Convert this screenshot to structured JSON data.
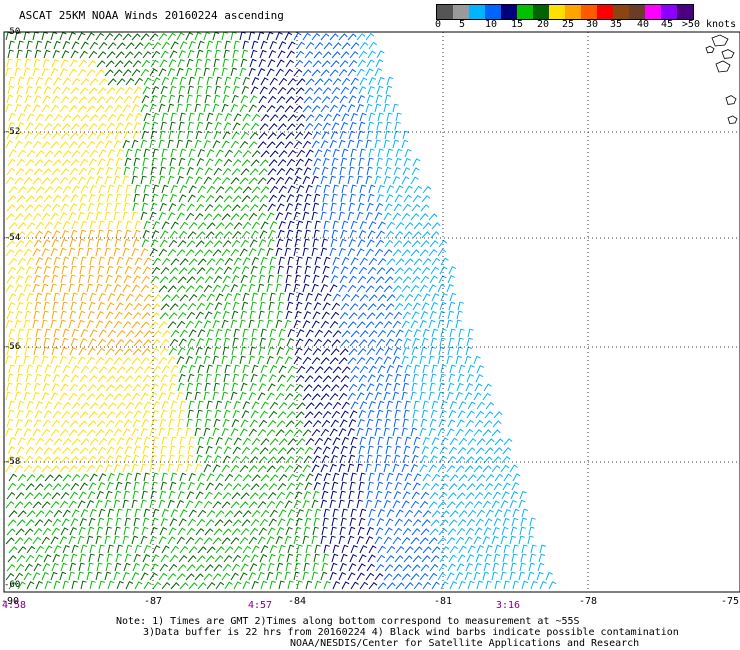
{
  "title": "ASCAT 25KM NOAA Winds 20160224 ascending",
  "legend": {
    "colors": [
      "#555555",
      "#9a9a9a",
      "#00b4ff",
      "#0064ff",
      "#00007a",
      "#00c000",
      "#006400",
      "#ffe000",
      "#ffa500",
      "#ff5a00",
      "#ff0000",
      "#8b4513",
      "#6a3d28",
      "#ff00ff",
      "#8b00ff",
      "#4b0082"
    ],
    "labels": [
      "0",
      "5",
      "10",
      "15",
      "20",
      "25",
      "30",
      "35",
      "40",
      "45",
      ">50 knots"
    ]
  },
  "axes": {
    "x_ticks": [
      "-90",
      "-87",
      "-84",
      "-81",
      "-78",
      "-75"
    ],
    "y_ticks": [
      "-50",
      "-52",
      "-54",
      "-56",
      "-58",
      "-60"
    ]
  },
  "times": [
    "4:58",
    "4:57",
    "3:16"
  ],
  "notes": [
    "Note: 1) Times are GMT 2)Times along bottom correspond to measurement at ~55S",
    "3)Data buffer is 22 hrs from 20160224 4) Black wind barbs indicate possible contamination"
  ],
  "credit": "NOAA/NESDIS/Center for Satellite Applications and Research"
}
